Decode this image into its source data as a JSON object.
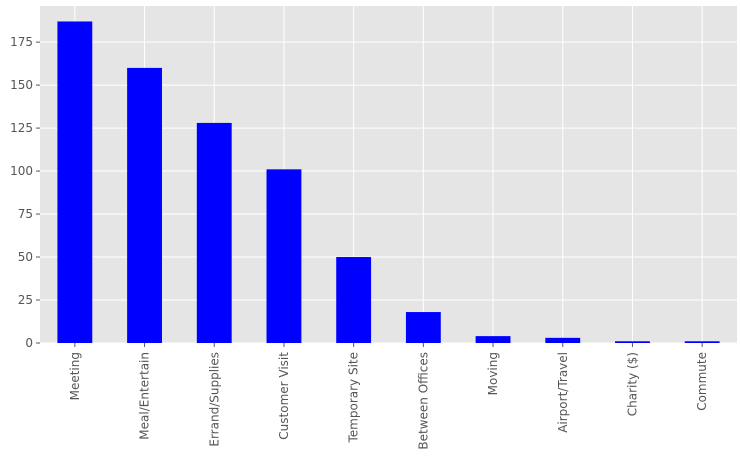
{
  "chart_data": {
    "type": "bar",
    "title": "",
    "xlabel": "",
    "ylabel": "",
    "categories": [
      "Meeting",
      "Meal/Entertain",
      "Errand/Supplies",
      "Customer Visit",
      "Temporary Site",
      "Between Offices",
      "Moving",
      "Airport/Travel",
      "Charity ($)",
      "Commute"
    ],
    "values": [
      187,
      160,
      128,
      101,
      50,
      18,
      4,
      3,
      1,
      1
    ],
    "ylim": [
      0,
      196
    ],
    "yticks": [
      0,
      25,
      50,
      75,
      100,
      125,
      150,
      175
    ],
    "grid": true,
    "bar_color": "#0000ff",
    "background_color": "#e5e5e5",
    "grid_color": "#ffffff"
  }
}
